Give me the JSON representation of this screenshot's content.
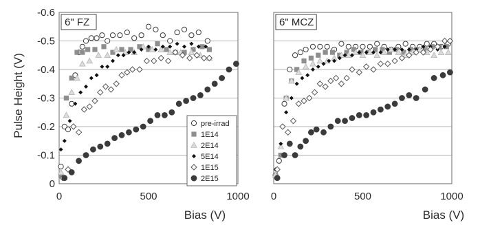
{
  "chart_data": [
    {
      "type": "scatter",
      "title": "6\" FZ",
      "xlabel": "Bias (V)",
      "ylabel": "Pulse Height (V)",
      "xlim": [
        0,
        1000
      ],
      "ylim": [
        0,
        -0.6
      ],
      "y_axis_inverted": true,
      "grid": "horizontal",
      "x_ticks": [
        "0",
        "500",
        "1000"
      ],
      "y_ticks": [
        "-0.6",
        "-0.5",
        "-0.4",
        "-0.3",
        "-0.2",
        "-0.1",
        "0"
      ],
      "legend_position": "bottom-right",
      "series": [
        {
          "name": "pre-irrad",
          "marker": "open-circle",
          "x": [
            10,
            30,
            50,
            70,
            90,
            110,
            130,
            150,
            180,
            210,
            240,
            270,
            300,
            340,
            380,
            420,
            460,
            500,
            540,
            580,
            620,
            660,
            700,
            740,
            780,
            830
          ],
          "y": [
            -0.06,
            -0.2,
            -0.19,
            -0.28,
            -0.38,
            -0.46,
            -0.48,
            -0.5,
            -0.51,
            -0.51,
            -0.52,
            -0.5,
            -0.52,
            -0.52,
            -0.53,
            -0.51,
            -0.52,
            -0.55,
            -0.54,
            -0.52,
            -0.5,
            -0.53,
            -0.54,
            -0.52,
            -0.53,
            -0.5
          ]
        },
        {
          "name": "1E14",
          "marker": "filled-square",
          "x": [
            10,
            40,
            70,
            100,
            130,
            160,
            200,
            250,
            300,
            350,
            400,
            450,
            500,
            550,
            600,
            650,
            700,
            750,
            800,
            840
          ],
          "y": [
            -0.03,
            -0.3,
            -0.37,
            -0.46,
            -0.46,
            -0.47,
            -0.47,
            -0.48,
            -0.46,
            -0.47,
            -0.47,
            -0.48,
            -0.47,
            -0.49,
            -0.47,
            -0.46,
            -0.46,
            -0.47,
            -0.48,
            -0.47
          ]
        },
        {
          "name": "2E14",
          "marker": "open-triangle",
          "x": [
            10,
            40,
            70,
            100,
            130,
            170,
            220,
            270,
            320,
            370,
            420,
            470,
            520,
            570,
            620,
            680,
            740,
            790,
            840
          ],
          "y": [
            -0.04,
            -0.24,
            -0.32,
            -0.37,
            -0.42,
            -0.43,
            -0.45,
            -0.45,
            -0.47,
            -0.46,
            -0.46,
            -0.48,
            -0.47,
            -0.47,
            -0.46,
            -0.46,
            -0.46,
            -0.45,
            -0.44
          ]
        },
        {
          "name": "5E14",
          "marker": "small-diamond",
          "x": [
            10,
            30,
            60,
            90,
            120,
            150,
            180,
            210,
            240,
            270,
            300,
            330,
            360,
            390,
            420,
            460,
            500,
            540,
            580,
            620,
            660,
            700,
            740,
            780,
            820
          ],
          "y": [
            -0.12,
            -0.15,
            -0.22,
            -0.28,
            -0.32,
            -0.34,
            -0.37,
            -0.38,
            -0.41,
            -0.41,
            -0.43,
            -0.45,
            -0.45,
            -0.46,
            -0.46,
            -0.47,
            -0.48,
            -0.47,
            -0.48,
            -0.48,
            -0.49,
            -0.48,
            -0.49,
            -0.48,
            -0.48
          ]
        },
        {
          "name": "1E15",
          "marker": "open-diamond",
          "x": [
            20,
            50,
            80,
            110,
            140,
            170,
            200,
            230,
            260,
            290,
            320,
            350,
            380,
            410,
            450,
            490,
            530,
            570,
            610,
            650,
            690,
            730,
            770,
            810,
            840
          ],
          "y": [
            -0.02,
            -0.05,
            -0.2,
            -0.18,
            -0.26,
            -0.27,
            -0.29,
            -0.32,
            -0.34,
            -0.33,
            -0.35,
            -0.38,
            -0.39,
            -0.4,
            -0.4,
            -0.43,
            -0.43,
            -0.44,
            -0.43,
            -0.46,
            -0.45,
            -0.44,
            -0.45,
            -0.44,
            -0.44
          ]
        },
        {
          "name": "2E15",
          "marker": "filled-circle",
          "x": [
            30,
            70,
            110,
            150,
            190,
            230,
            270,
            310,
            350,
            390,
            430,
            470,
            510,
            550,
            590,
            630,
            670,
            710,
            750,
            790,
            830,
            870,
            910,
            950,
            990
          ],
          "y": [
            -0.02,
            -0.04,
            -0.08,
            -0.1,
            -0.12,
            -0.13,
            -0.14,
            -0.16,
            -0.17,
            -0.18,
            -0.19,
            -0.2,
            -0.22,
            -0.24,
            -0.24,
            -0.25,
            -0.28,
            -0.29,
            -0.3,
            -0.31,
            -0.33,
            -0.35,
            -0.37,
            -0.4,
            -0.42
          ]
        }
      ]
    },
    {
      "type": "scatter",
      "title": "6\" MCZ",
      "xlabel": "Bias (V)",
      "ylabel": "",
      "xlim": [
        0,
        1000
      ],
      "ylim": [
        0,
        -0.6
      ],
      "y_axis_inverted": true,
      "grid": "horizontal",
      "x_ticks": [
        "0",
        "500",
        "1000"
      ],
      "y_ticks": [],
      "series": [
        {
          "name": "pre-irrad",
          "marker": "open-circle",
          "x": [
            10,
            30,
            60,
            90,
            120,
            150,
            180,
            220,
            260,
            300,
            340,
            380,
            420,
            460,
            500,
            540,
            580,
            620,
            660,
            700,
            740,
            780,
            820,
            860,
            900,
            940,
            980
          ],
          "y": [
            -0.03,
            -0.08,
            -0.28,
            -0.4,
            -0.45,
            -0.46,
            -0.47,
            -0.48,
            -0.48,
            -0.48,
            -0.47,
            -0.49,
            -0.48,
            -0.48,
            -0.48,
            -0.48,
            -0.49,
            -0.48,
            -0.47,
            -0.48,
            -0.49,
            -0.48,
            -0.48,
            -0.49,
            -0.49,
            -0.48,
            -0.49
          ]
        },
        {
          "name": "1E14",
          "marker": "filled-square",
          "x": [
            10,
            40,
            70,
            100,
            130,
            170,
            210,
            250,
            290,
            330,
            370,
            410,
            450,
            490,
            530,
            570,
            610,
            650,
            690,
            730,
            770,
            810,
            850,
            890,
            930,
            970
          ],
          "y": [
            -0.03,
            -0.1,
            -0.3,
            -0.36,
            -0.4,
            -0.43,
            -0.44,
            -0.45,
            -0.46,
            -0.46,
            -0.45,
            -0.46,
            -0.47,
            -0.46,
            -0.46,
            -0.47,
            -0.47,
            -0.46,
            -0.47,
            -0.46,
            -0.47,
            -0.47,
            -0.47,
            -0.48,
            -0.48,
            -0.48
          ]
        },
        {
          "name": "2E14",
          "marker": "open-triangle",
          "x": [
            10,
            40,
            70,
            100,
            140,
            180,
            220,
            260,
            300,
            340,
            380,
            420,
            460,
            500,
            540,
            580,
            620,
            660,
            700,
            740,
            780,
            820,
            860,
            900,
            940,
            980
          ],
          "y": [
            -0.03,
            -0.13,
            -0.3,
            -0.36,
            -0.39,
            -0.41,
            -0.42,
            -0.43,
            -0.43,
            -0.44,
            -0.45,
            -0.45,
            -0.46,
            -0.45,
            -0.46,
            -0.45,
            -0.46,
            -0.47,
            -0.46,
            -0.45,
            -0.46,
            -0.47,
            -0.46,
            -0.45,
            -0.46,
            -0.46
          ]
        },
        {
          "name": "5E14",
          "marker": "small-diamond",
          "x": [
            10,
            40,
            70,
            100,
            130,
            160,
            190,
            220,
            250,
            280,
            310,
            340,
            370,
            400,
            440,
            480,
            520,
            560,
            600,
            640,
            680,
            720,
            760,
            800,
            840,
            880,
            920,
            960
          ],
          "y": [
            -0.05,
            -0.14,
            -0.25,
            -0.3,
            -0.35,
            -0.37,
            -0.38,
            -0.4,
            -0.41,
            -0.42,
            -0.43,
            -0.43,
            -0.44,
            -0.45,
            -0.45,
            -0.46,
            -0.46,
            -0.46,
            -0.46,
            -0.47,
            -0.47,
            -0.47,
            -0.47,
            -0.47,
            -0.48,
            -0.48,
            -0.47,
            -0.48
          ]
        },
        {
          "name": "1E15",
          "marker": "open-diamond",
          "x": [
            20,
            50,
            80,
            110,
            140,
            170,
            200,
            230,
            260,
            290,
            320,
            350,
            380,
            410,
            440,
            480,
            520,
            560,
            600,
            640,
            680,
            720,
            760,
            800,
            840,
            880,
            920,
            960,
            990
          ],
          "y": [
            -0.05,
            -0.2,
            -0.18,
            -0.22,
            -0.28,
            -0.29,
            -0.3,
            -0.32,
            -0.35,
            -0.34,
            -0.36,
            -0.37,
            -0.35,
            -0.37,
            -0.4,
            -0.39,
            -0.41,
            -0.4,
            -0.42,
            -0.42,
            -0.43,
            -0.44,
            -0.45,
            -0.46,
            -0.46,
            -0.47,
            -0.48,
            -0.5,
            -0.5
          ]
        },
        {
          "name": "2E15",
          "marker": "filled-circle",
          "x": [
            20,
            60,
            90,
            120,
            150,
            180,
            210,
            240,
            280,
            320,
            360,
            400,
            440,
            480,
            520,
            560,
            600,
            640,
            680,
            720,
            760,
            800,
            850,
            900,
            950,
            990
          ],
          "y": [
            -0.02,
            -0.1,
            -0.14,
            -0.1,
            -0.13,
            -0.15,
            -0.18,
            -0.19,
            -0.18,
            -0.2,
            -0.22,
            -0.22,
            -0.23,
            -0.24,
            -0.24,
            -0.25,
            -0.26,
            -0.27,
            -0.28,
            -0.3,
            -0.31,
            -0.3,
            -0.33,
            -0.37,
            -0.38,
            -0.39
          ]
        }
      ]
    }
  ]
}
